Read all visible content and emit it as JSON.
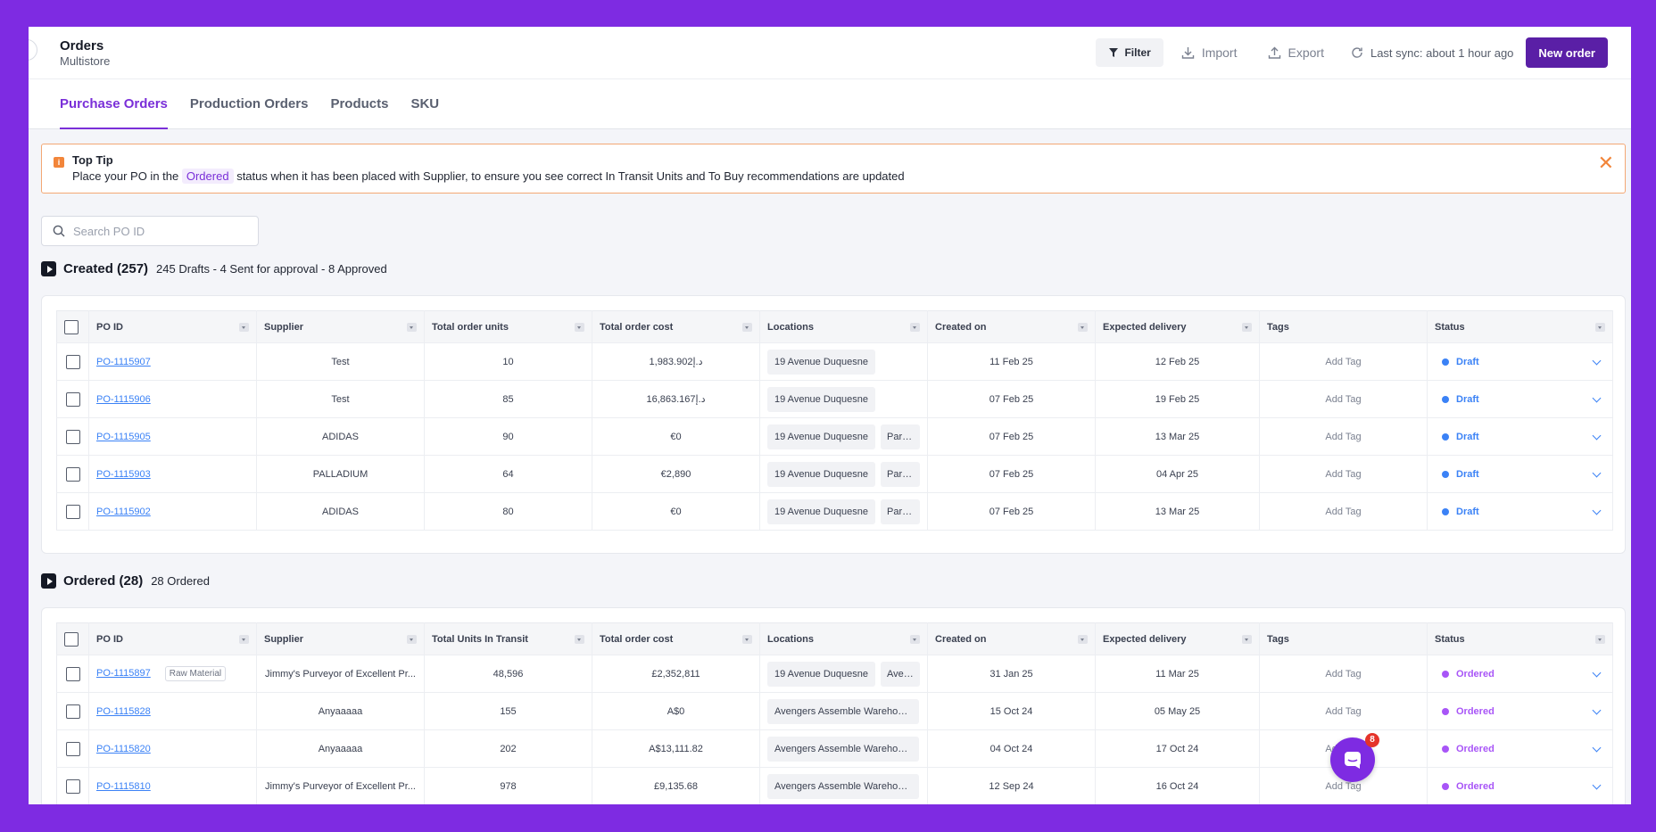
{
  "header": {
    "title": "Orders",
    "subtitle": "Multistore",
    "filter_label": "Filter",
    "import_label": "Import",
    "export_label": "Export",
    "sync_text": "Last sync: about 1 hour ago",
    "new_order_label": "New order"
  },
  "tabs": [
    {
      "label": "Purchase Orders",
      "active": true
    },
    {
      "label": "Production Orders",
      "active": false
    },
    {
      "label": "Products",
      "active": false
    },
    {
      "label": "SKU",
      "active": false
    }
  ],
  "tip": {
    "title": "Top Tip",
    "text_before": "Place your PO in the",
    "status_chip": "Ordered",
    "text_after": "status when it has been placed with Supplier, to ensure you see correct In Transit Units and To Buy recommendations are updated"
  },
  "search": {
    "placeholder": "Search PO ID"
  },
  "created": {
    "title": "Created (257)",
    "summary": "245 Drafts - 4 Sent for approval - 8 Approved",
    "columns": [
      "PO ID",
      "Supplier",
      "Total order units",
      "Total order cost",
      "Locations",
      "Created on",
      "Expected delivery",
      "Tags",
      "Status"
    ],
    "rows": [
      {
        "po": "PO-1115907",
        "supplier": "Test",
        "units": "10",
        "cost": "1,983.902د.إ",
        "loc1": "19 Avenue Duquesne",
        "loc2": "",
        "created": "11 Feb 25",
        "delivery": "12 Feb 25",
        "tag": "Add Tag",
        "status": "Draft"
      },
      {
        "po": "PO-1115906",
        "supplier": "Test",
        "units": "85",
        "cost": "16,863.167د.إ",
        "loc1": "19 Avenue Duquesne",
        "loc2": "",
        "created": "07 Feb 25",
        "delivery": "19 Feb 25",
        "tag": "Add Tag",
        "status": "Draft"
      },
      {
        "po": "PO-1115905",
        "supplier": "ADIDAS",
        "units": "90",
        "cost": "€0",
        "loc1": "19 Avenue Duquesne",
        "loc2": "Paris ...",
        "created": "07 Feb 25",
        "delivery": "13 Mar 25",
        "tag": "Add Tag",
        "status": "Draft"
      },
      {
        "po": "PO-1115903",
        "supplier": "PALLADIUM",
        "units": "64",
        "cost": "€2,890",
        "loc1": "19 Avenue Duquesne",
        "loc2": "Paris ...",
        "created": "07 Feb 25",
        "delivery": "04 Apr 25",
        "tag": "Add Tag",
        "status": "Draft"
      },
      {
        "po": "PO-1115902",
        "supplier": "ADIDAS",
        "units": "80",
        "cost": "€0",
        "loc1": "19 Avenue Duquesne",
        "loc2": "Paris ...",
        "created": "07 Feb 25",
        "delivery": "13 Mar 25",
        "tag": "Add Tag",
        "status": "Draft"
      }
    ]
  },
  "ordered": {
    "title": "Ordered (28)",
    "summary": "28 Ordered",
    "columns": [
      "PO ID",
      "Supplier",
      "Total Units In Transit",
      "Total order cost",
      "Locations",
      "Created on",
      "Expected delivery",
      "Tags",
      "Status"
    ],
    "rows": [
      {
        "po": "PO-1115897",
        "badge": "Raw Material",
        "supplier": "Jimmy's Purveyor of Excellent Pr...",
        "units": "48,596",
        "cost": "£2,352,811",
        "loc1": "19 Avenue Duquesne",
        "loc2": "Aven...",
        "created": "31 Jan 25",
        "delivery": "11 Mar 25",
        "tag": "Add Tag",
        "status": "Ordered"
      },
      {
        "po": "PO-1115828",
        "badge": "",
        "supplier": "Anyaaaaa",
        "units": "155",
        "cost": "A$0",
        "loc1": "Avengers Assemble Warehouse...",
        "loc2": "",
        "created": "15 Oct 24",
        "delivery": "05 May 25",
        "tag": "Add Tag",
        "status": "Ordered"
      },
      {
        "po": "PO-1115820",
        "badge": "",
        "supplier": "Anyaaaaa",
        "units": "202",
        "cost": "A$13,111.82",
        "loc1": "Avengers Assemble Warehouse...",
        "loc2": "",
        "created": "04 Oct 24",
        "delivery": "17 Oct 24",
        "tag": "Add Tag",
        "status": "Ordered"
      },
      {
        "po": "PO-1115810",
        "badge": "",
        "supplier": "Jimmy's Purveyor of Excellent Pr...",
        "units": "978",
        "cost": "£9,135.68",
        "loc1": "Avengers Assemble Warehouse...",
        "loc2": "",
        "created": "12 Sep 24",
        "delivery": "16 Oct 24",
        "tag": "Add Tag",
        "status": "Ordered"
      }
    ]
  },
  "colors": {
    "accent": "#7a2fd8",
    "draft": "#3b82f6",
    "ordered": "#a855f7",
    "primary_button": "#5a1fa6"
  },
  "chat": {
    "badge_count": "8",
    "icon": "chat-icon"
  }
}
